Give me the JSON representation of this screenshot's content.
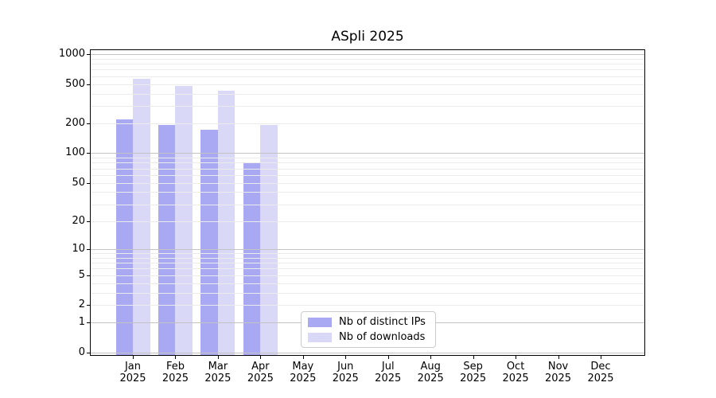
{
  "title": "ASpli 2025",
  "chart_data": {
    "type": "bar",
    "title": "ASpli 2025",
    "categories": [
      "Jan",
      "Feb",
      "Mar",
      "Apr",
      "May",
      "Jun",
      "Jul",
      "Aug",
      "Sep",
      "Oct",
      "Nov",
      "Dec"
    ],
    "category_year": "2025",
    "series": [
      {
        "name": "Nb of distinct IPs",
        "color": "#a9a9f3",
        "values": [
          220,
          195,
          174,
          80,
          null,
          null,
          null,
          null,
          null,
          null,
          null,
          null
        ]
      },
      {
        "name": "Nb of downloads",
        "color": "#d9d9f7",
        "values": [
          560,
          477,
          429,
          192,
          null,
          null,
          null,
          null,
          null,
          null,
          null,
          null
        ]
      }
    ],
    "yscale": "log1p",
    "ytick_values": [
      0,
      1,
      2,
      5,
      10,
      20,
      50,
      100,
      200,
      500,
      1000
    ],
    "ylim": [
      0,
      1100
    ],
    "grid": true,
    "grid_major_values": [
      0,
      1,
      10,
      100,
      1000
    ],
    "legend_position": "lower-center",
    "xlabel": "",
    "ylabel": ""
  },
  "colors": {
    "ips_bar": "#a9a9f3",
    "downloads_bar": "#d9d9f7",
    "grid_major": "#c3c3c3",
    "grid_minor": "#ebebeb",
    "spine": "#000000",
    "background": "#ffffff"
  }
}
